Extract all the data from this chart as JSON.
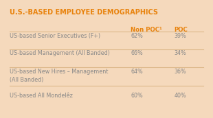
{
  "title": "U.S.-BASED EMPLOYEE DEMOGRAPHICS",
  "title_color": "#E8820C",
  "background_color": "#F5D9BC",
  "header_non_poc": "Non POC¹",
  "header_poc": "POC",
  "header_color": "#E8820C",
  "rows": [
    {
      "label": "US-based Senior Executives (F+)",
      "non_poc": "62%",
      "poc": "39%"
    },
    {
      "label": "US-based Management (All Banded)",
      "non_poc": "66%",
      "poc": "34%"
    },
    {
      "label": "US-based New Hires – Management\n(All Banded)",
      "non_poc": "64%",
      "poc": "36%"
    },
    {
      "label": "US-based All Mondelêz",
      "non_poc": "60%",
      "poc": "40%"
    }
  ],
  "row_label_color": "#888888",
  "value_color": "#888888",
  "separator_color": "#DDB88A",
  "fig_width": 3.1,
  "fig_height": 1.72
}
